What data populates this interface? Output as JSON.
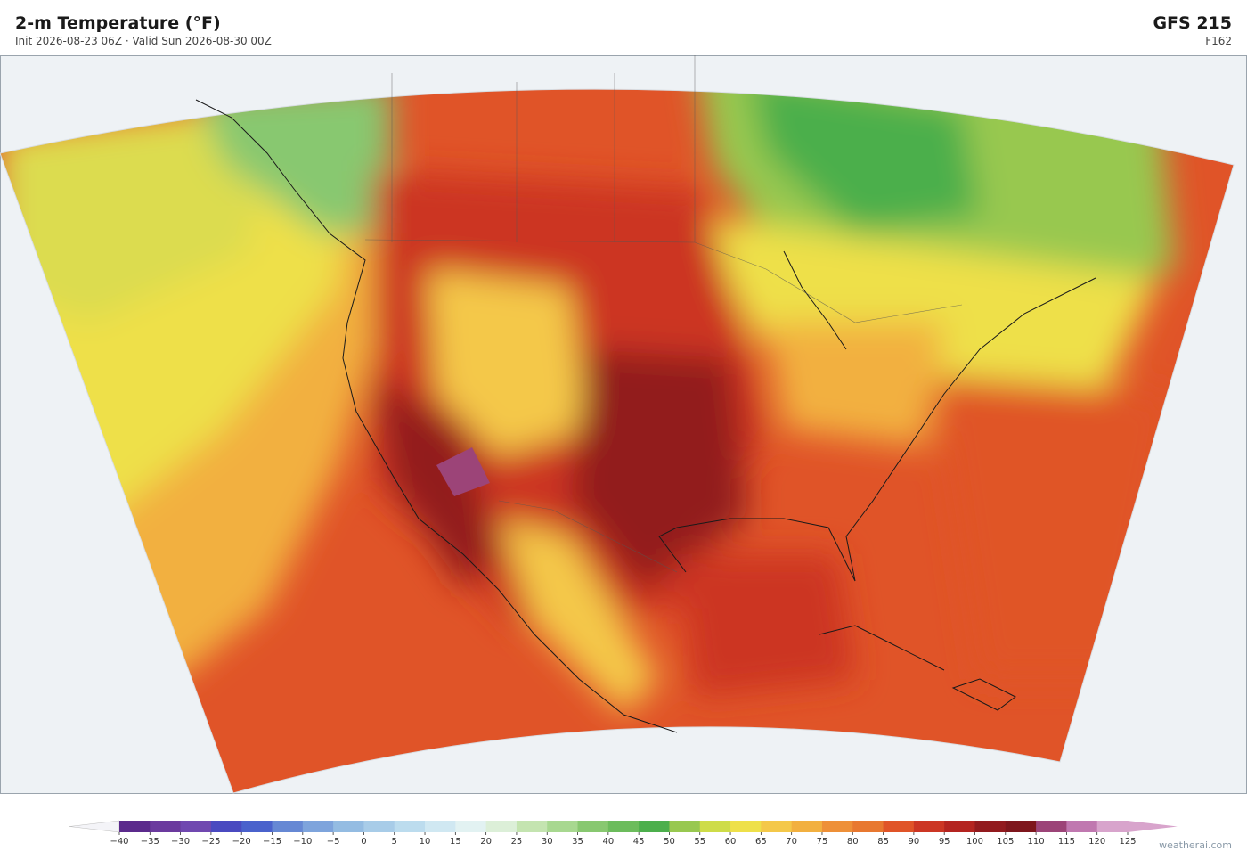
{
  "header": {
    "title": "2-m Temperature  (°F)",
    "subtitle": "Init 2026-08-23 06Z  ·  Valid Sun 2026-08-30 00Z",
    "model": "GFS  215",
    "forecast_hour": "F162"
  },
  "colorbar": {
    "ticks": [
      {
        "value": -40,
        "label": "−40"
      },
      {
        "value": -35,
        "label": "−35"
      },
      {
        "value": -30,
        "label": "−30"
      },
      {
        "value": -25,
        "label": "−25"
      },
      {
        "value": -20,
        "label": "−20"
      },
      {
        "value": -15,
        "label": "−15"
      },
      {
        "value": -10,
        "label": "−10"
      },
      {
        "value": -5,
        "label": "−5"
      },
      0,
      5,
      10,
      15,
      20,
      25,
      30,
      35,
      40,
      45,
      50,
      55,
      60,
      65,
      70,
      75,
      80,
      85,
      90,
      95,
      100,
      105,
      110,
      115,
      120,
      125
    ],
    "colors": [
      "#5b2a8c",
      "#6b3a9e",
      "#7048b0",
      "#4a4ac0",
      "#4a62cc",
      "#6688d4",
      "#7ea4dc",
      "#94bce2",
      "#a8cce8",
      "#bcdcee",
      "#d0e8f2",
      "#e2f2f2",
      "#dcefd8",
      "#c4e4b0",
      "#a8d890",
      "#88c870",
      "#6cbc5c",
      "#4caf4c",
      "#98c850",
      "#cedc48",
      "#eee04a",
      "#f4c84a",
      "#f2b040",
      "#ee9038",
      "#e87830",
      "#e05428",
      "#cc3624",
      "#b42420",
      "#921a1e",
      "#7e161c",
      "#9c4478",
      "#c078b0",
      "#d8a4cc"
    ],
    "under_color": "#f4f4f8",
    "over_color": "#d8a4cc"
  },
  "footer": {
    "credit": "weatherai.com"
  }
}
